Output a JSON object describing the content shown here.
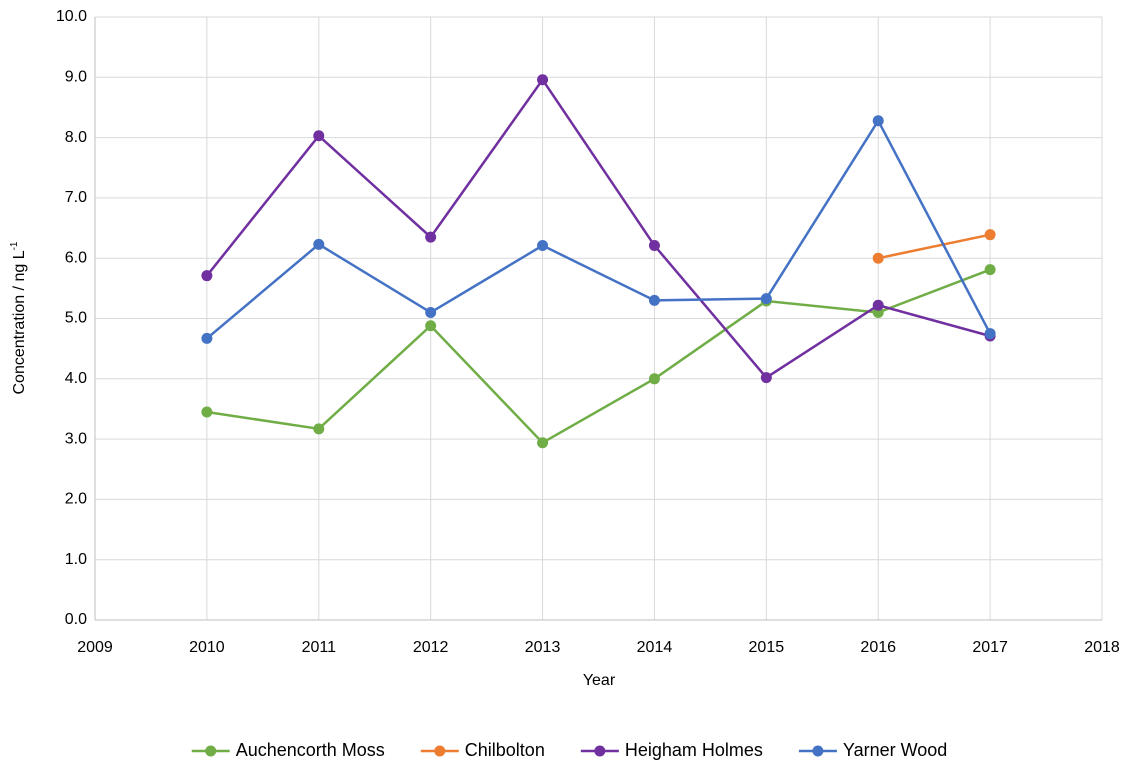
{
  "chart_data": {
    "type": "line",
    "x_label": "Year",
    "y_label": {
      "text": "Concentration / ng L",
      "superscript": "-1"
    },
    "x": [
      2010,
      2011,
      2012,
      2013,
      2014,
      2015,
      2016,
      2017
    ],
    "series": [
      {
        "name": "Auchencorth Moss",
        "color": "#70ad47",
        "values": [
          3.45,
          3.17,
          4.88,
          2.94,
          4.0,
          5.29,
          5.1,
          5.81
        ]
      },
      {
        "name": "Chilbolton",
        "color": "#ed7d31",
        "values": [
          null,
          null,
          null,
          null,
          null,
          null,
          6.0,
          6.39
        ]
      },
      {
        "name": "Heigham Holmes",
        "color": "#7030a0",
        "values": [
          5.71,
          8.03,
          6.35,
          8.96,
          6.21,
          4.02,
          5.22,
          4.71
        ]
      },
      {
        "name": "Yarner Wood",
        "color": "#4472c4",
        "values": [
          4.67,
          6.23,
          5.1,
          6.21,
          5.3,
          5.33,
          8.28,
          4.75
        ]
      }
    ],
    "xlim": [
      2009,
      2018
    ],
    "xticks": [
      2009,
      2010,
      2011,
      2012,
      2013,
      2014,
      2015,
      2016,
      2017,
      2018
    ],
    "ylim": [
      0,
      10
    ],
    "yticks": [
      {
        "value": 0,
        "label": "0.0"
      },
      {
        "value": 1,
        "label": "1.0"
      },
      {
        "value": 2,
        "label": "2.0"
      },
      {
        "value": 3,
        "label": "3.0"
      },
      {
        "value": 4,
        "label": "4.0"
      },
      {
        "value": 5,
        "label": "5.0"
      },
      {
        "value": 6,
        "label": "6.0"
      },
      {
        "value": 7,
        "label": "7.0"
      },
      {
        "value": 8,
        "label": "8.0"
      },
      {
        "value": 9,
        "label": "9.0"
      },
      {
        "value": 10,
        "label": "10.0"
      }
    ],
    "grid": true,
    "legend": "bottom"
  }
}
